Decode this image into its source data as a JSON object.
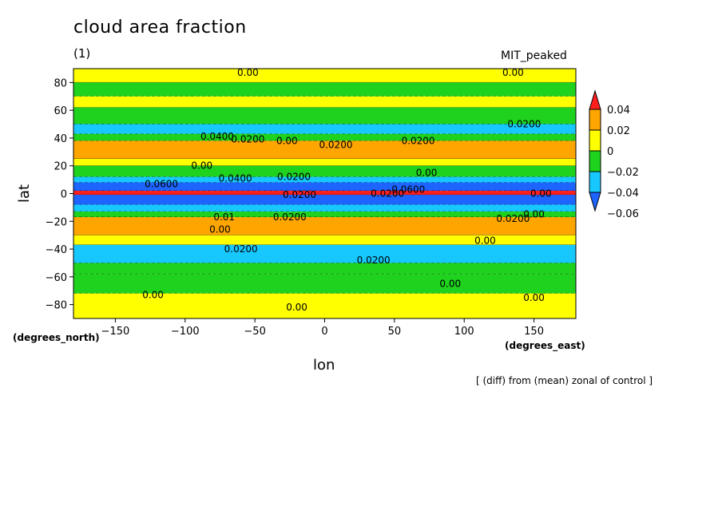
{
  "header": {
    "title": "cloud area fraction",
    "subtitle": "(1)",
    "model": "MIT_peaked",
    "note": "[ (diff) from (mean) zonal of control ]"
  },
  "chart_data": {
    "type": "heatmap",
    "title": "cloud area fraction",
    "subtitle": "(1)",
    "xlabel": "lon",
    "ylabel": "lat",
    "x_unit": "(degrees_east)",
    "y_unit": "(degrees_north)",
    "xlim": [
      -180,
      180
    ],
    "ylim": [
      -90,
      90
    ],
    "x_ticks": [
      -150,
      -100,
      -50,
      0,
      50,
      100,
      150
    ],
    "y_ticks": [
      -80,
      -60,
      -40,
      -20,
      0,
      20,
      40,
      60,
      80
    ],
    "colorbar": {
      "levels": [
        -0.06,
        -0.04,
        -0.02,
        0,
        0.02,
        0.04
      ],
      "tick_labels": [
        "0.04",
        "0.02",
        "0",
        "−0.02",
        "−0.04",
        "−0.06"
      ],
      "colors": [
        "#1e64ff",
        "#17c8ff",
        "#1ed21e",
        "#ffff00",
        "#ffa500",
        "#ff1e1e"
      ]
    },
    "zonal_bands": [
      {
        "lat_range": [
          80,
          90
        ],
        "value_class": 0
      },
      {
        "lat_range": [
          70,
          80
        ],
        "value_class": -0.02
      },
      {
        "lat_range": [
          62,
          70
        ],
        "value_class": 0
      },
      {
        "lat_range": [
          50,
          62
        ],
        "value_class": -0.02
      },
      {
        "lat_range": [
          43,
          50
        ],
        "value_class": -0.04
      },
      {
        "lat_range": [
          38,
          43
        ],
        "value_class": -0.02
      },
      {
        "lat_range": [
          25,
          38
        ],
        "value_class": 0.02
      },
      {
        "lat_range": [
          20,
          25
        ],
        "value_class": 0
      },
      {
        "lat_range": [
          12,
          20
        ],
        "value_class": -0.02
      },
      {
        "lat_range": [
          8,
          12
        ],
        "value_class": -0.04
      },
      {
        "lat_range": [
          2,
          8
        ],
        "value_class": -0.06
      },
      {
        "lat_range": [
          -1,
          2
        ],
        "value_class": 0.04
      },
      {
        "lat_range": [
          -8,
          -1
        ],
        "value_class": -0.06
      },
      {
        "lat_range": [
          -13,
          -8
        ],
        "value_class": -0.04
      },
      {
        "lat_range": [
          -17,
          -13
        ],
        "value_class": -0.02
      },
      {
        "lat_range": [
          -30,
          -17
        ],
        "value_class": 0.02
      },
      {
        "lat_range": [
          -37,
          -30
        ],
        "value_class": 0
      },
      {
        "lat_range": [
          -50,
          -37
        ],
        "value_class": -0.04
      },
      {
        "lat_range": [
          -58,
          -50
        ],
        "value_class": -0.02
      },
      {
        "lat_range": [
          -72,
          -58
        ],
        "value_class": -0.02
      },
      {
        "lat_range": [
          -90,
          -72
        ],
        "value_class": 0
      }
    ],
    "annotations": [
      {
        "text": "0.00",
        "lon": -55,
        "lat": 87
      },
      {
        "text": "0.00",
        "lon": 135,
        "lat": 87
      },
      {
        "text": "0.0200",
        "lon": 143,
        "lat": 50
      },
      {
        "text": "0.0400",
        "lon": -77,
        "lat": 41
      },
      {
        "text": "0.0200",
        "lon": -55,
        "lat": 39
      },
      {
        "text": "0.00",
        "lon": -27,
        "lat": 38
      },
      {
        "text": "0.0200",
        "lon": 8,
        "lat": 35
      },
      {
        "text": "0.0200",
        "lon": 67,
        "lat": 38
      },
      {
        "text": "0.00",
        "lon": -88,
        "lat": 20
      },
      {
        "text": "0.00",
        "lon": 73,
        "lat": 15
      },
      {
        "text": "0.0400",
        "lon": -64,
        "lat": 11
      },
      {
        "text": "0.0200",
        "lon": -22,
        "lat": 12
      },
      {
        "text": "0.0600",
        "lon": -117,
        "lat": 7
      },
      {
        "text": "0.0600",
        "lon": 60,
        "lat": 3
      },
      {
        "text": "0.00",
        "lon": 155,
        "lat": 0
      },
      {
        "text": "0.0200",
        "lon": -18,
        "lat": -1
      },
      {
        "text": "0.0200",
        "lon": 45,
        "lat": 0
      },
      {
        "text": "0.01",
        "lon": -72,
        "lat": -17
      },
      {
        "text": "0.0200",
        "lon": -25,
        "lat": -17
      },
      {
        "text": "0.0200",
        "lon": 135,
        "lat": -18
      },
      {
        "text": "0.00",
        "lon": 150,
        "lat": -15
      },
      {
        "text": "0.00",
        "lon": -75,
        "lat": -26
      },
      {
        "text": "0.0200",
        "lon": -60,
        "lat": -40
      },
      {
        "text": "0.00",
        "lon": 115,
        "lat": -34
      },
      {
        "text": "0.0200",
        "lon": 35,
        "lat": -48
      },
      {
        "text": "0.00",
        "lon": 90,
        "lat": -65
      },
      {
        "text": "0.00",
        "lon": -123,
        "lat": -73
      },
      {
        "text": "0.00",
        "lon": 150,
        "lat": -75
      },
      {
        "text": "0.00",
        "lon": -20,
        "lat": -82
      }
    ]
  }
}
